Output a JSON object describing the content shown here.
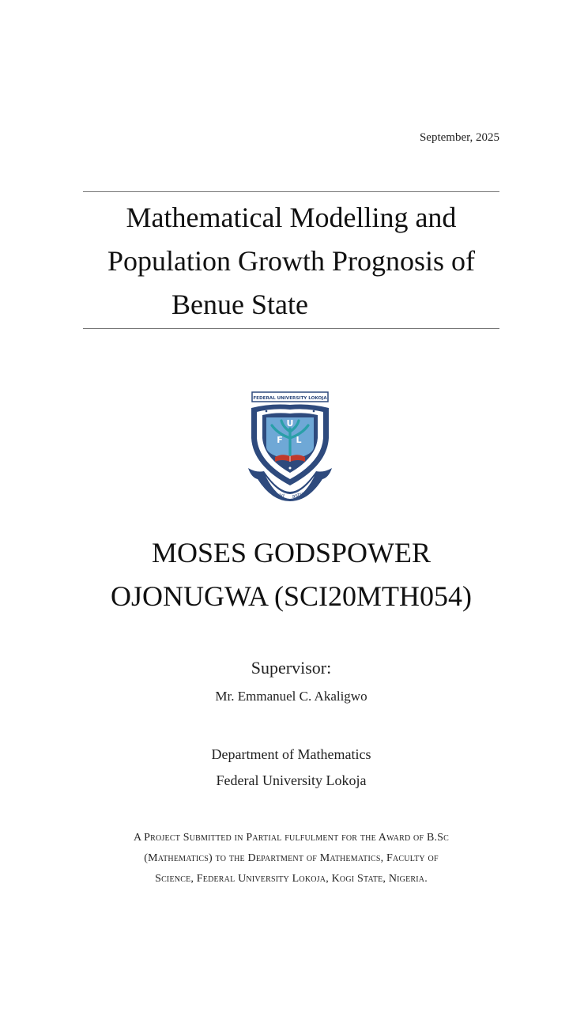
{
  "date": "September, 2025",
  "title": {
    "lines": [
      "Mathematical Modelling and",
      "Population Growth Prognosis of",
      "Benue State"
    ]
  },
  "crest": {
    "banner": "FEDERAL UNIVERSITY LOKOJA",
    "letters": [
      "U",
      "F",
      "L"
    ],
    "motto": [
      "ad",
      "astra"
    ],
    "colors": {
      "navy": "#2e4a7d",
      "light_blue": "#6fa8d6",
      "teal": "#2a9fa8",
      "red": "#c0392b"
    }
  },
  "author": {
    "lines": [
      "MOSES GODSPOWER",
      "OJONUGWA (SCI20MTH054)"
    ]
  },
  "supervisor": {
    "label": "Supervisor:",
    "name": "Mr. Emmanuel C. Akaligwo"
  },
  "department": {
    "lines": [
      "Department of Mathematics",
      "Federal University Lokoja"
    ]
  },
  "submission": {
    "lines": [
      "A Project Submitted in Partial fulfulment for the Award of B.Sc",
      "(Mathematics) to the Department of Mathematics, Faculty of",
      "Science, Federal University Lokoja, Kogi State, Nigeria."
    ]
  }
}
